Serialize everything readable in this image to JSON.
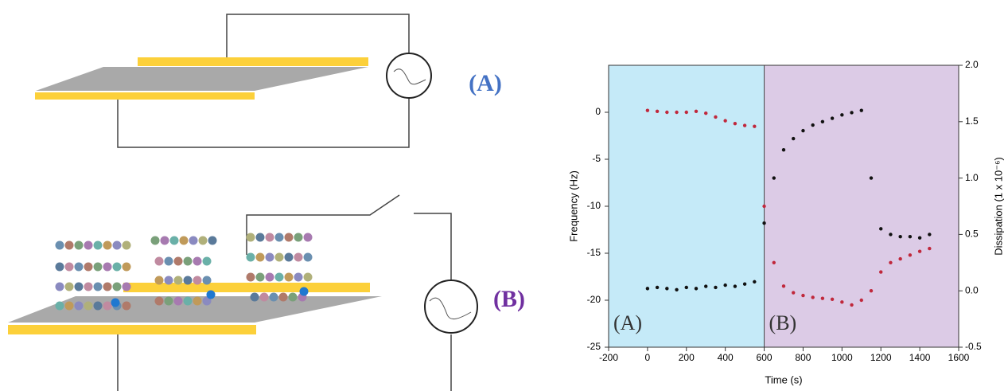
{
  "diagram": {
    "labels": [
      "(A)",
      "(B)"
    ]
  },
  "chart_data": {
    "type": "scatter",
    "xlabel": "Time (s)",
    "ylabel": "Frequency (Hz)",
    "y2label": "Dissipation (1 x 10⁻⁶)",
    "xlim": [
      -200,
      1600
    ],
    "xticks": [
      -200,
      0,
      200,
      400,
      600,
      800,
      1000,
      1200,
      1400,
      1600
    ],
    "ylim": [
      -25,
      5
    ],
    "yticks": [
      -25,
      -20,
      -15,
      -10,
      -5,
      0
    ],
    "y2lim": [
      -0.5,
      2.0
    ],
    "y2ticks": [
      -0.5,
      {
        "value": 0,
        "label": "0.0"
      },
      0.5,
      {
        "value": 1,
        "label": "1.0"
      },
      1.5,
      {
        "value": 2,
        "label": "2.0"
      }
    ],
    "regions": [
      {
        "label": "(A)",
        "from": -200,
        "to": 600,
        "color": "#c5eaf8"
      },
      {
        "label": "(B)",
        "from": 600,
        "to": 1600,
        "color": "#dccbe6"
      }
    ],
    "x": [
      0,
      50,
      100,
      150,
      200,
      250,
      300,
      350,
      400,
      450,
      500,
      550,
      600,
      650,
      700,
      750,
      800,
      850,
      900,
      950,
      1000,
      1050,
      1100,
      1150,
      1200,
      1250,
      1300,
      1350,
      1400,
      1450
    ],
    "series": [
      {
        "color": "#c0283c",
        "values": [
          0.2,
          0.1,
          0,
          0,
          0,
          0.1,
          -0.1,
          -0.5,
          -0.9,
          -1.2,
          -1.4,
          -1.5,
          -10,
          -16,
          -18.5,
          -19.2,
          -19.5,
          -19.7,
          -19.8,
          -19.9,
          -20.2,
          -20.5,
          -20,
          -19,
          -17,
          -16,
          -15.6,
          -15.2,
          -14.8,
          -14.5
        ]
      },
      {
        "color": "#111111",
        "axis": "y2",
        "values": [
          0.02,
          0.03,
          0.02,
          0.01,
          0.03,
          0.02,
          0.04,
          0.03,
          0.05,
          0.04,
          0.06,
          0.08,
          0.6,
          1.0,
          1.25,
          1.35,
          1.42,
          1.47,
          1.5,
          1.53,
          1.56,
          1.58,
          1.6,
          1.0,
          0.55,
          0.5,
          0.48,
          0.48,
          0.47,
          0.5
        ]
      }
    ]
  }
}
